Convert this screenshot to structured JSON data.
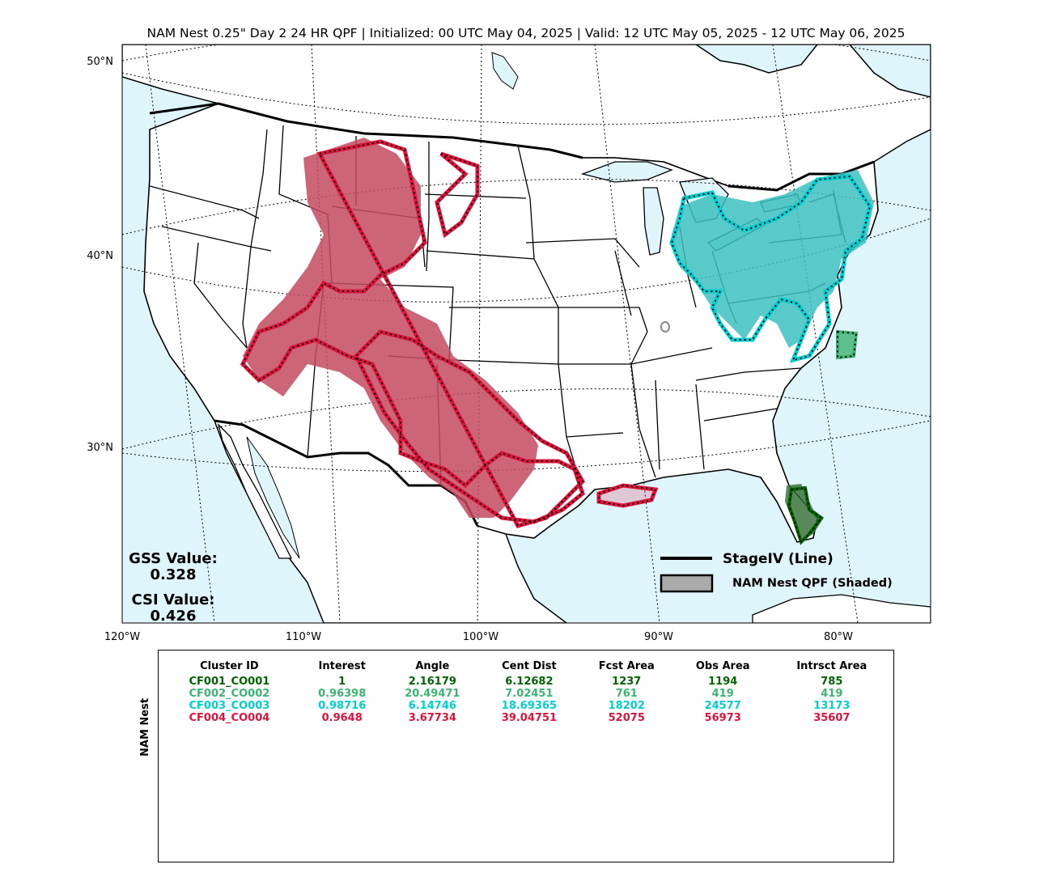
{
  "title": "NAM Nest 0.25\" Day 2 24 HR QPF | Initialized: 00 UTC May 04, 2025 | Valid: 12 UTC May 05, 2025 - 12 UTC May 06, 2025",
  "lat_labels": [
    "50°N",
    "40°N",
    "30°N"
  ],
  "lon_labels": [
    "120°W",
    "110°W",
    "100°W",
    "90°W",
    "80°W"
  ],
  "stats": {
    "gss_label": "GSS Value:",
    "gss_value": "0.328",
    "csi_label": "CSI Value:",
    "csi_value": "0.426"
  },
  "legend": {
    "line_label": "StageIV (Line)",
    "shaded_label": "NAM Nest QPF (Shaded)"
  },
  "colors": {
    "ocean": "#dff5fc",
    "land": "#ffffff",
    "cluster1": "#006400",
    "cluster2": "#3cb371",
    "cluster3": "#00ced1",
    "cluster4": "#dc143c"
  },
  "table": {
    "side_label": "NAM Nest",
    "headers": [
      "Cluster ID",
      "Interest",
      "Angle",
      "Cent Dist",
      "Fcst Area",
      "Obs Area",
      "Intrsct Area"
    ],
    "rows": [
      {
        "color": "#006400",
        "cells": [
          "CF001_CO001",
          "1",
          "2.16179",
          "6.12682",
          "1237",
          "1194",
          "785"
        ]
      },
      {
        "color": "#3cb371",
        "cells": [
          "CF002_CO002",
          "0.96398",
          "20.49471",
          "7.02451",
          "761",
          "419",
          "419"
        ]
      },
      {
        "color": "#00ced1",
        "cells": [
          "CF003_CO003",
          "0.98716",
          "6.14746",
          "18.69365",
          "18202",
          "24577",
          "13173"
        ]
      },
      {
        "color": "#dc143c",
        "cells": [
          "CF004_CO004",
          "0.9648",
          "3.67734",
          "39.04751",
          "52075",
          "56973",
          "35607"
        ]
      }
    ]
  }
}
